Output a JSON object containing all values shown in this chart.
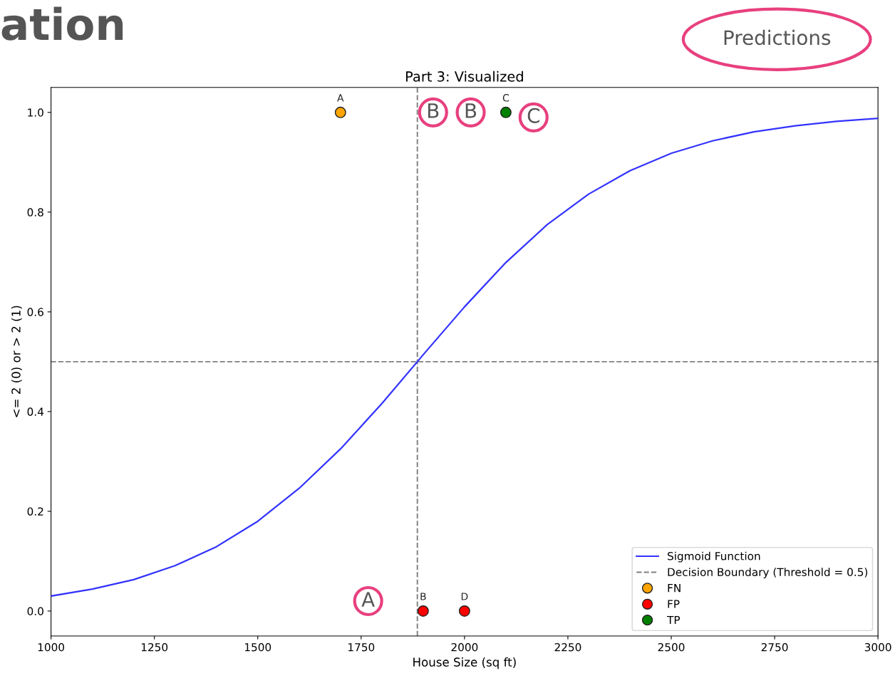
{
  "chart_data": {
    "type": "line",
    "title": "Part 3: Visualized",
    "xlabel": "House Size (sq ft)",
    "ylabel": "<= 2 (0) or > 2 (1)",
    "xlim": [
      1000,
      3000
    ],
    "xticks": [
      1000,
      1250,
      1500,
      1750,
      2000,
      2250,
      2500,
      2750,
      3000
    ],
    "ylim": [
      -0.05,
      1.05
    ],
    "yticks": [
      {
        "value": 0,
        "label": "0.0"
      },
      0.2,
      0.4,
      0.6,
      0.8,
      {
        "value": 1,
        "label": "1.0"
      }
    ],
    "series": [
      {
        "name": "Sigmoid Function",
        "color": "#3333ff",
        "marker": "none",
        "x": [
          1000,
          1100,
          1200,
          1300,
          1400,
          1500,
          1600,
          1700,
          1800,
          1886,
          1900,
          2000,
          2100,
          2200,
          2300,
          2400,
          2500,
          2600,
          2700,
          2800,
          2900,
          3000
        ],
        "values": [
          0.03,
          0.044,
          0.063,
          0.091,
          0.129,
          0.18,
          0.246,
          0.325,
          0.416,
          0.5,
          0.514,
          0.61,
          0.699,
          0.775,
          0.836,
          0.883,
          0.918,
          0.943,
          0.961,
          0.973,
          0.982,
          0.988
        ]
      },
      {
        "name": "FN",
        "type": "scatter",
        "color": "#ffa500",
        "marker": "circle",
        "x": [
          1700
        ],
        "values": [
          1
        ],
        "value_labels": [
          "A"
        ]
      },
      {
        "name": "FP",
        "type": "scatter",
        "color": "#ff0000",
        "marker": "circle",
        "x": [
          1900,
          2000
        ],
        "values": [
          0,
          0
        ],
        "value_labels": [
          "B",
          "D"
        ]
      },
      {
        "name": "TP",
        "type": "scatter",
        "color": "#008000",
        "marker": "circle",
        "x": [
          2100
        ],
        "values": [
          1
        ],
        "value_labels": [
          "C"
        ]
      }
    ],
    "ref_lines": [
      {
        "axis": "y",
        "value": 0.5,
        "label": "Decision Boundary (Threshold = 0.5)",
        "color": "#808080",
        "line_style": "dashed"
      },
      {
        "axis": "x",
        "value": 1886,
        "color": "#808080",
        "line_style": "dashed"
      }
    ],
    "annotations": [
      "ation",
      "Predictions",
      {
        "text": "B",
        "x": 1924,
        "y": 1.0
      },
      {
        "text": "B",
        "x": 2015,
        "y": 1.0
      },
      {
        "text": "C",
        "x": 2167,
        "y": 0.99
      },
      {
        "text": "A",
        "x": 1767,
        "y": 0.02
      }
    ],
    "legend": "bottom right",
    "grid": false
  }
}
